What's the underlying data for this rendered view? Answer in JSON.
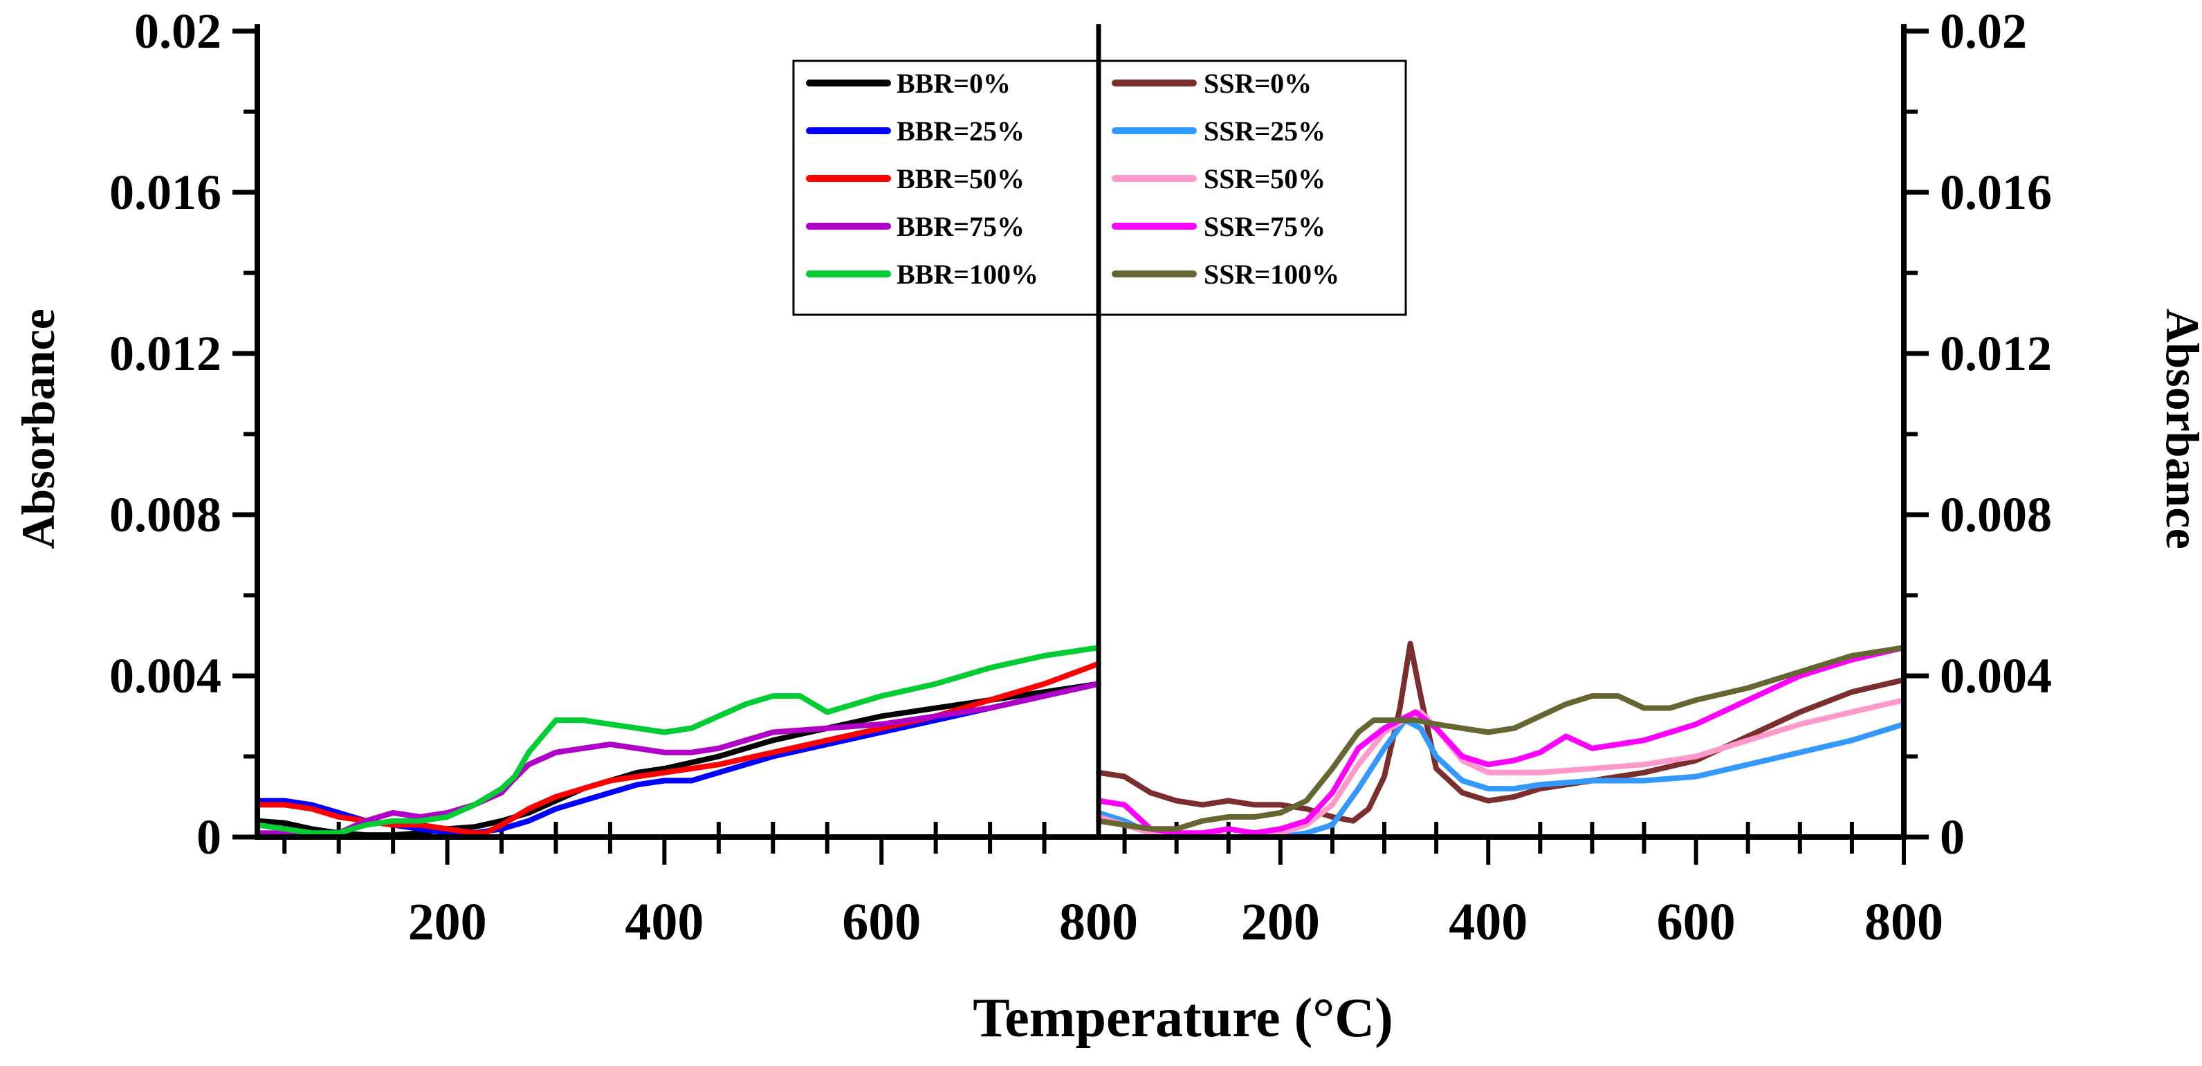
{
  "chart_data": [
    {
      "type": "line",
      "panel": "left",
      "title": "",
      "xlabel": "",
      "ylabel": "Absorbance",
      "xlim": [
        25,
        800
      ],
      "ylim": [
        0,
        0.02
      ],
      "x_ticks": [
        200,
        400,
        600,
        800
      ],
      "x_tick_labels": [
        "200",
        "400",
        "600",
        "800"
      ],
      "y_ticks": [
        0,
        0.004,
        0.008,
        0.012,
        0.016,
        0.02
      ],
      "y_tick_labels": [
        "0",
        "0.004",
        "0.008",
        "0.012",
        "0.016",
        "0.02"
      ],
      "legend": "top-right",
      "series": [
        {
          "name": "BBR=0%",
          "color": "#000000",
          "x": [
            25,
            50,
            75,
            100,
            125,
            150,
            175,
            200,
            225,
            250,
            275,
            300,
            325,
            350,
            375,
            400,
            450,
            500,
            550,
            600,
            650,
            700,
            750,
            800
          ],
          "y": [
            0.0004,
            0.00035,
            0.0002,
            0.0001,
            5e-05,
            5e-05,
            0.0001,
            0.0002,
            0.00025,
            0.0004,
            0.0006,
            0.0009,
            0.0012,
            0.0014,
            0.0016,
            0.0017,
            0.002,
            0.0024,
            0.0027,
            0.003,
            0.0032,
            0.0034,
            0.0036,
            0.0038
          ]
        },
        {
          "name": "BBR=25%",
          "color": "#0000ff",
          "x": [
            25,
            50,
            75,
            100,
            125,
            150,
            175,
            200,
            225,
            250,
            275,
            300,
            325,
            350,
            375,
            400,
            425,
            450,
            500,
            550,
            600,
            650,
            700,
            750,
            800
          ],
          "y": [
            0.0009,
            0.0009,
            0.0008,
            0.0006,
            0.0004,
            0.0003,
            0.0002,
            0.0001,
            0.0001,
            0.0002,
            0.0004,
            0.0007,
            0.0009,
            0.0011,
            0.0013,
            0.0014,
            0.0014,
            0.0016,
            0.002,
            0.0023,
            0.0026,
            0.0029,
            0.0032,
            0.0035,
            0.0038
          ]
        },
        {
          "name": "BBR=50%",
          "color": "#ff0000",
          "x": [
            25,
            50,
            75,
            100,
            125,
            150,
            175,
            200,
            225,
            235,
            250,
            275,
            300,
            325,
            350,
            375,
            400,
            450,
            500,
            550,
            600,
            650,
            700,
            750,
            800
          ],
          "y": [
            0.0008,
            0.0008,
            0.0007,
            0.0005,
            0.0004,
            0.0003,
            0.0003,
            0.0002,
            0.0001,
            0.0001,
            0.0003,
            0.0007,
            0.001,
            0.0012,
            0.0014,
            0.0015,
            0.0016,
            0.0018,
            0.0021,
            0.0024,
            0.0027,
            0.003,
            0.0034,
            0.0038,
            0.0043
          ]
        },
        {
          "name": "BBR=75%",
          "color": "#b000c8",
          "x": [
            25,
            50,
            75,
            100,
            125,
            150,
            175,
            200,
            225,
            250,
            260,
            275,
            300,
            325,
            350,
            375,
            400,
            425,
            450,
            500,
            550,
            600,
            650,
            700,
            750,
            800
          ],
          "y": [
            0.0001,
            0.0001,
            5e-05,
            0.0001,
            0.0004,
            0.0006,
            0.0005,
            0.0006,
            0.0008,
            0.0011,
            0.0014,
            0.0018,
            0.0021,
            0.0022,
            0.0023,
            0.0022,
            0.0021,
            0.0021,
            0.0022,
            0.0026,
            0.0027,
            0.0028,
            0.003,
            0.0032,
            0.0035,
            0.0038
          ]
        },
        {
          "name": "BBR=100%",
          "color": "#00cc33",
          "x": [
            25,
            50,
            75,
            100,
            125,
            150,
            175,
            200,
            225,
            250,
            262,
            275,
            300,
            325,
            350,
            375,
            400,
            425,
            450,
            475,
            500,
            525,
            550,
            575,
            600,
            650,
            700,
            750,
            800
          ],
          "y": [
            0.0003,
            0.0002,
            0.0001,
            0.0001,
            0.0003,
            0.0004,
            0.0004,
            0.0005,
            0.0008,
            0.0012,
            0.0015,
            0.0021,
            0.0029,
            0.0029,
            0.0028,
            0.0027,
            0.0026,
            0.0027,
            0.003,
            0.0033,
            0.0035,
            0.0035,
            0.0031,
            0.0033,
            0.0035,
            0.0038,
            0.0042,
            0.0045,
            0.0047
          ]
        }
      ]
    },
    {
      "type": "line",
      "panel": "right",
      "title": "",
      "xlabel": "",
      "ylabel": "Absorbance",
      "xlim": [
        25,
        800
      ],
      "ylim": [
        0,
        0.02
      ],
      "x_ticks": [
        200,
        400,
        600,
        800
      ],
      "x_tick_labels": [
        "200",
        "400",
        "600",
        "800"
      ],
      "y_ticks": [
        0,
        0.004,
        0.008,
        0.012,
        0.016,
        0.02
      ],
      "y_tick_labels": [
        "0",
        "0.004",
        "0.008",
        "0.012",
        "0.016",
        "0.02"
      ],
      "legend": "top-left",
      "series": [
        {
          "name": "SSR=0%",
          "color": "#7a2e2e",
          "x": [
            25,
            50,
            75,
            100,
            125,
            150,
            175,
            200,
            225,
            250,
            270,
            285,
            300,
            315,
            325,
            335,
            350,
            375,
            400,
            425,
            450,
            500,
            550,
            600,
            650,
            700,
            750,
            800
          ],
          "y": [
            0.0016,
            0.0015,
            0.0011,
            0.0009,
            0.0008,
            0.0009,
            0.0008,
            0.0008,
            0.0007,
            0.0005,
            0.0004,
            0.0007,
            0.0015,
            0.0032,
            0.0048,
            0.0035,
            0.0017,
            0.0011,
            0.0009,
            0.001,
            0.0012,
            0.0014,
            0.0016,
            0.0019,
            0.0025,
            0.0031,
            0.0036,
            0.0039
          ]
        },
        {
          "name": "SSR=25%",
          "color": "#3399ff",
          "x": [
            25,
            50,
            75,
            100,
            125,
            150,
            175,
            200,
            225,
            250,
            275,
            300,
            320,
            335,
            350,
            375,
            400,
            425,
            450,
            500,
            550,
            600,
            650,
            700,
            750,
            800
          ],
          "y": [
            0.0006,
            0.0004,
            0.0001,
            0.0,
            0.0,
            0.0,
            0.0,
            0.0,
            0.0001,
            0.0003,
            0.0012,
            0.0022,
            0.0029,
            0.0027,
            0.002,
            0.0014,
            0.0012,
            0.0012,
            0.0013,
            0.0014,
            0.0014,
            0.0015,
            0.0018,
            0.0021,
            0.0024,
            0.0028
          ]
        },
        {
          "name": "SSR=50%",
          "color": "#ff99cc",
          "x": [
            25,
            50,
            75,
            100,
            125,
            150,
            175,
            200,
            225,
            250,
            275,
            300,
            325,
            335,
            350,
            375,
            400,
            450,
            500,
            550,
            600,
            650,
            700,
            750,
            800
          ],
          "y": [
            0.0005,
            0.0003,
            0.0001,
            0.0,
            0.0001,
            0.0,
            0.0,
            0.0001,
            0.0003,
            0.0008,
            0.0018,
            0.0026,
            0.003,
            0.0031,
            0.0027,
            0.0019,
            0.0016,
            0.0016,
            0.0017,
            0.0018,
            0.002,
            0.0024,
            0.0028,
            0.0031,
            0.0034
          ]
        },
        {
          "name": "SSR=75%",
          "color": "#ff00ff",
          "x": [
            25,
            50,
            75,
            100,
            125,
            150,
            175,
            200,
            225,
            250,
            275,
            300,
            330,
            350,
            375,
            400,
            425,
            450,
            475,
            500,
            550,
            600,
            650,
            700,
            750,
            800
          ],
          "y": [
            0.0009,
            0.0008,
            0.0002,
            0.0001,
            0.0001,
            0.0002,
            0.0001,
            0.0002,
            0.0004,
            0.0011,
            0.0022,
            0.0027,
            0.0031,
            0.0027,
            0.002,
            0.0018,
            0.0019,
            0.0021,
            0.0025,
            0.0022,
            0.0024,
            0.0028,
            0.0034,
            0.004,
            0.0044,
            0.0047
          ]
        },
        {
          "name": "SSR=100%",
          "color": "#666633",
          "x": [
            25,
            50,
            75,
            100,
            125,
            150,
            175,
            200,
            225,
            250,
            275,
            290,
            310,
            330,
            350,
            375,
            400,
            425,
            450,
            475,
            500,
            525,
            550,
            575,
            600,
            650,
            700,
            750,
            800
          ],
          "y": [
            0.0004,
            0.0003,
            0.0002,
            0.0002,
            0.0004,
            0.0005,
            0.0005,
            0.0006,
            0.0009,
            0.0017,
            0.0026,
            0.0029,
            0.0029,
            0.0029,
            0.0028,
            0.0027,
            0.0026,
            0.0027,
            0.003,
            0.0033,
            0.0035,
            0.0035,
            0.0032,
            0.0032,
            0.0034,
            0.0037,
            0.0041,
            0.0045,
            0.0047
          ]
        }
      ]
    }
  ],
  "shared_xlabel": "Temperature (°C)"
}
